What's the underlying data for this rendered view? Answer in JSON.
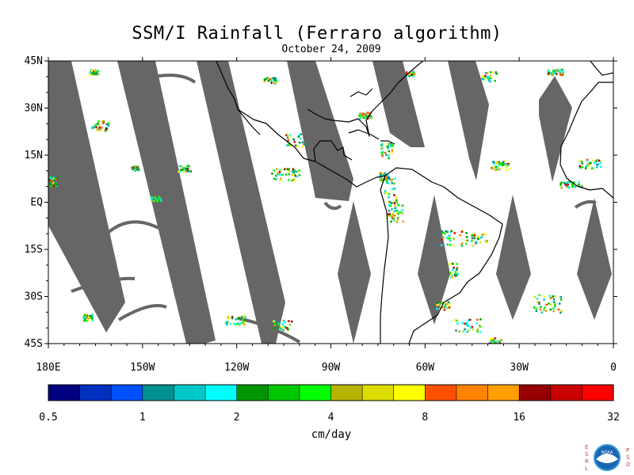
{
  "header": {
    "title": "SSM/I Rainfall (Ferraro algorithm)",
    "subtitle": "October 24, 2009"
  },
  "map": {
    "lat_labels": [
      "45N",
      "30N",
      "15N",
      "EQ",
      "15S",
      "30S",
      "45S"
    ],
    "lon_labels": [
      "180E",
      "150W",
      "120W",
      "90W",
      "60W",
      "30W",
      "0"
    ],
    "no_data_color": "#666666",
    "coast_color": "#000000"
  },
  "colorbar": {
    "colors": [
      "#000080",
      "#0030c0",
      "#0050ff",
      "#009090",
      "#00c8c8",
      "#00ffff",
      "#009600",
      "#00c800",
      "#00ff00",
      "#b4b400",
      "#dcdc00",
      "#ffff00",
      "#ff5000",
      "#ff8200",
      "#ffa000",
      "#960000",
      "#c80000",
      "#ff0000"
    ],
    "tick_labels": [
      "0.5",
      "1",
      "2",
      "4",
      "8",
      "16",
      "32"
    ],
    "unit": "cm/day"
  },
  "logo": {
    "left_letters": "ESRL",
    "right_letters": "PSD",
    "badge_text": "NOAA"
  }
}
